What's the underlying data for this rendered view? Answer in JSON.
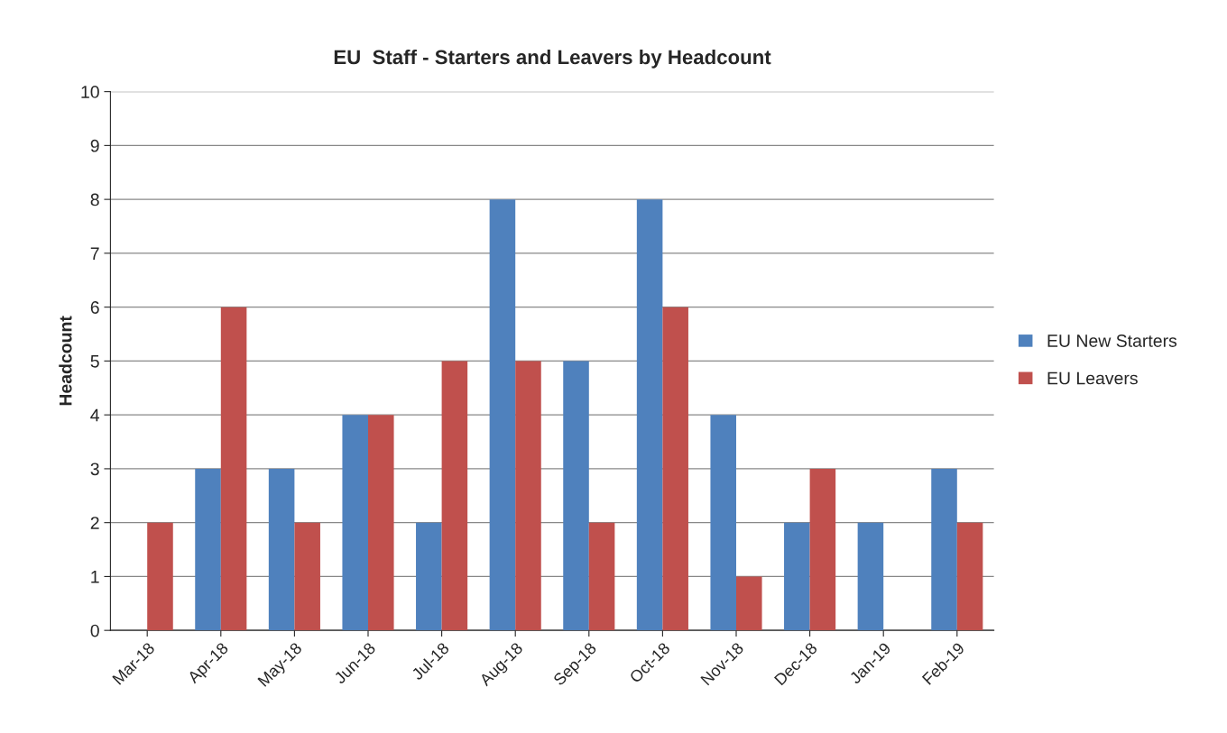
{
  "chart_data": {
    "type": "bar",
    "title": "EU  Staff - Starters and Leavers by Headcount",
    "ylabel": "Headcount",
    "categories": [
      "Mar-18",
      "Apr-18",
      "May-18",
      "Jun-18",
      "Jul-18",
      "Aug-18",
      "Sep-18",
      "Oct-18",
      "Nov-18",
      "Dec-18",
      "Jan-19",
      "Feb-19"
    ],
    "series": [
      {
        "name": "EU New Starters",
        "color": "#4f81bd",
        "values": [
          0,
          3,
          3,
          4,
          2,
          8,
          5,
          8,
          4,
          2,
          2,
          3
        ]
      },
      {
        "name": "EU Leavers",
        "color": "#c0504d",
        "values": [
          2,
          6,
          2,
          4,
          5,
          5,
          2,
          6,
          1,
          3,
          0,
          2
        ]
      }
    ],
    "ylim": [
      0,
      10
    ],
    "yticks": [
      0,
      1,
      2,
      3,
      4,
      5,
      6,
      7,
      8,
      9,
      10
    ],
    "grid": "y",
    "legend": "right"
  }
}
